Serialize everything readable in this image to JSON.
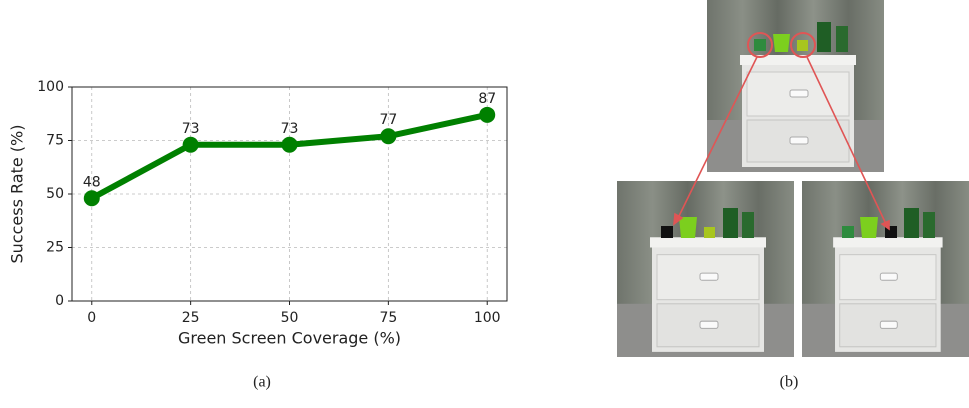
{
  "chart_data": {
    "type": "line",
    "xlabel": "Green Screen Coverage (%)",
    "ylabel": "Success Rate (%)",
    "x": [
      0,
      25,
      50,
      75,
      100
    ],
    "values": [
      48,
      73,
      73,
      77,
      87
    ],
    "color": "#008000",
    "xlim": [
      -5,
      105
    ],
    "ylim": [
      0,
      100
    ],
    "xticks": [
      0,
      25,
      50,
      75,
      100
    ],
    "yticks": [
      0,
      25,
      50,
      75,
      100
    ],
    "grid": true
  },
  "captions": [
    "(a)",
    "(b)"
  ]
}
